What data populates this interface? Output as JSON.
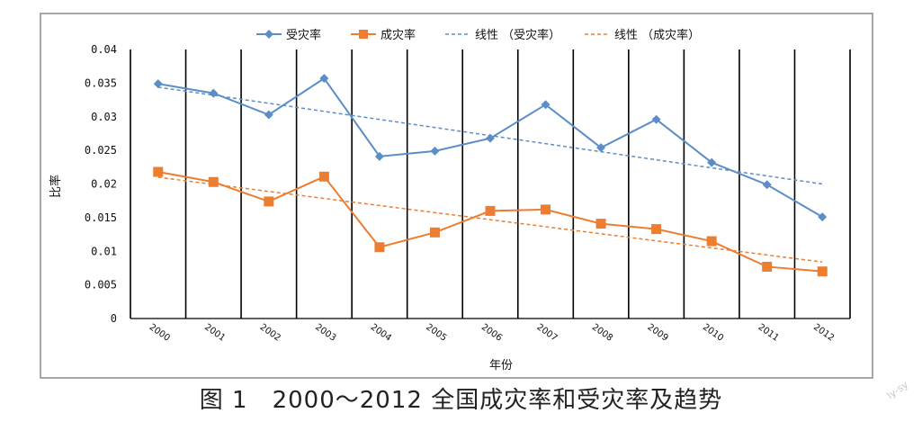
{
  "chart_data": {
    "type": "line",
    "categories": [
      "2000",
      "2001",
      "2002",
      "2003",
      "2004",
      "2005",
      "2006",
      "2007",
      "2008",
      "2009",
      "2010",
      "2011",
      "2012"
    ],
    "series": [
      {
        "name": "受灾率",
        "color": "#5b8ec7",
        "marker": "diamond",
        "values": [
          0.0349,
          0.0335,
          0.0303,
          0.0357,
          0.0241,
          0.0249,
          0.0268,
          0.0318,
          0.0254,
          0.0296,
          0.0232,
          0.0199,
          0.0151
        ]
      },
      {
        "name": "成灾率",
        "color": "#ed7d31",
        "marker": "square",
        "values": [
          0.0218,
          0.0203,
          0.0174,
          0.0211,
          0.0106,
          0.0128,
          0.016,
          0.0162,
          0.0141,
          0.0133,
          0.0115,
          0.0077,
          0.007
        ]
      }
    ],
    "trendlines": [
      {
        "name": "线性 （受灾率）",
        "color": "#5b8ec7",
        "style": "dashed",
        "start": 0.0344,
        "end": 0.02
      },
      {
        "name": "线性 （成灾率）",
        "color": "#ed7d31",
        "style": "dashed",
        "start": 0.021,
        "end": 0.0084
      }
    ],
    "y_ticks": [
      "0",
      "0.005",
      "0.01",
      "0.015",
      "0.02",
      "0.025",
      "0.03",
      "0.035",
      "0.04"
    ],
    "ylim": [
      0,
      0.04
    ],
    "xlabel": "年份",
    "ylabel": "比率",
    "grid": "vertical lines between categories",
    "legend_position": "top"
  },
  "caption": "图 1　2000～2012 全国成灾率和受灾率及趋势",
  "watermark": "ly-sy"
}
